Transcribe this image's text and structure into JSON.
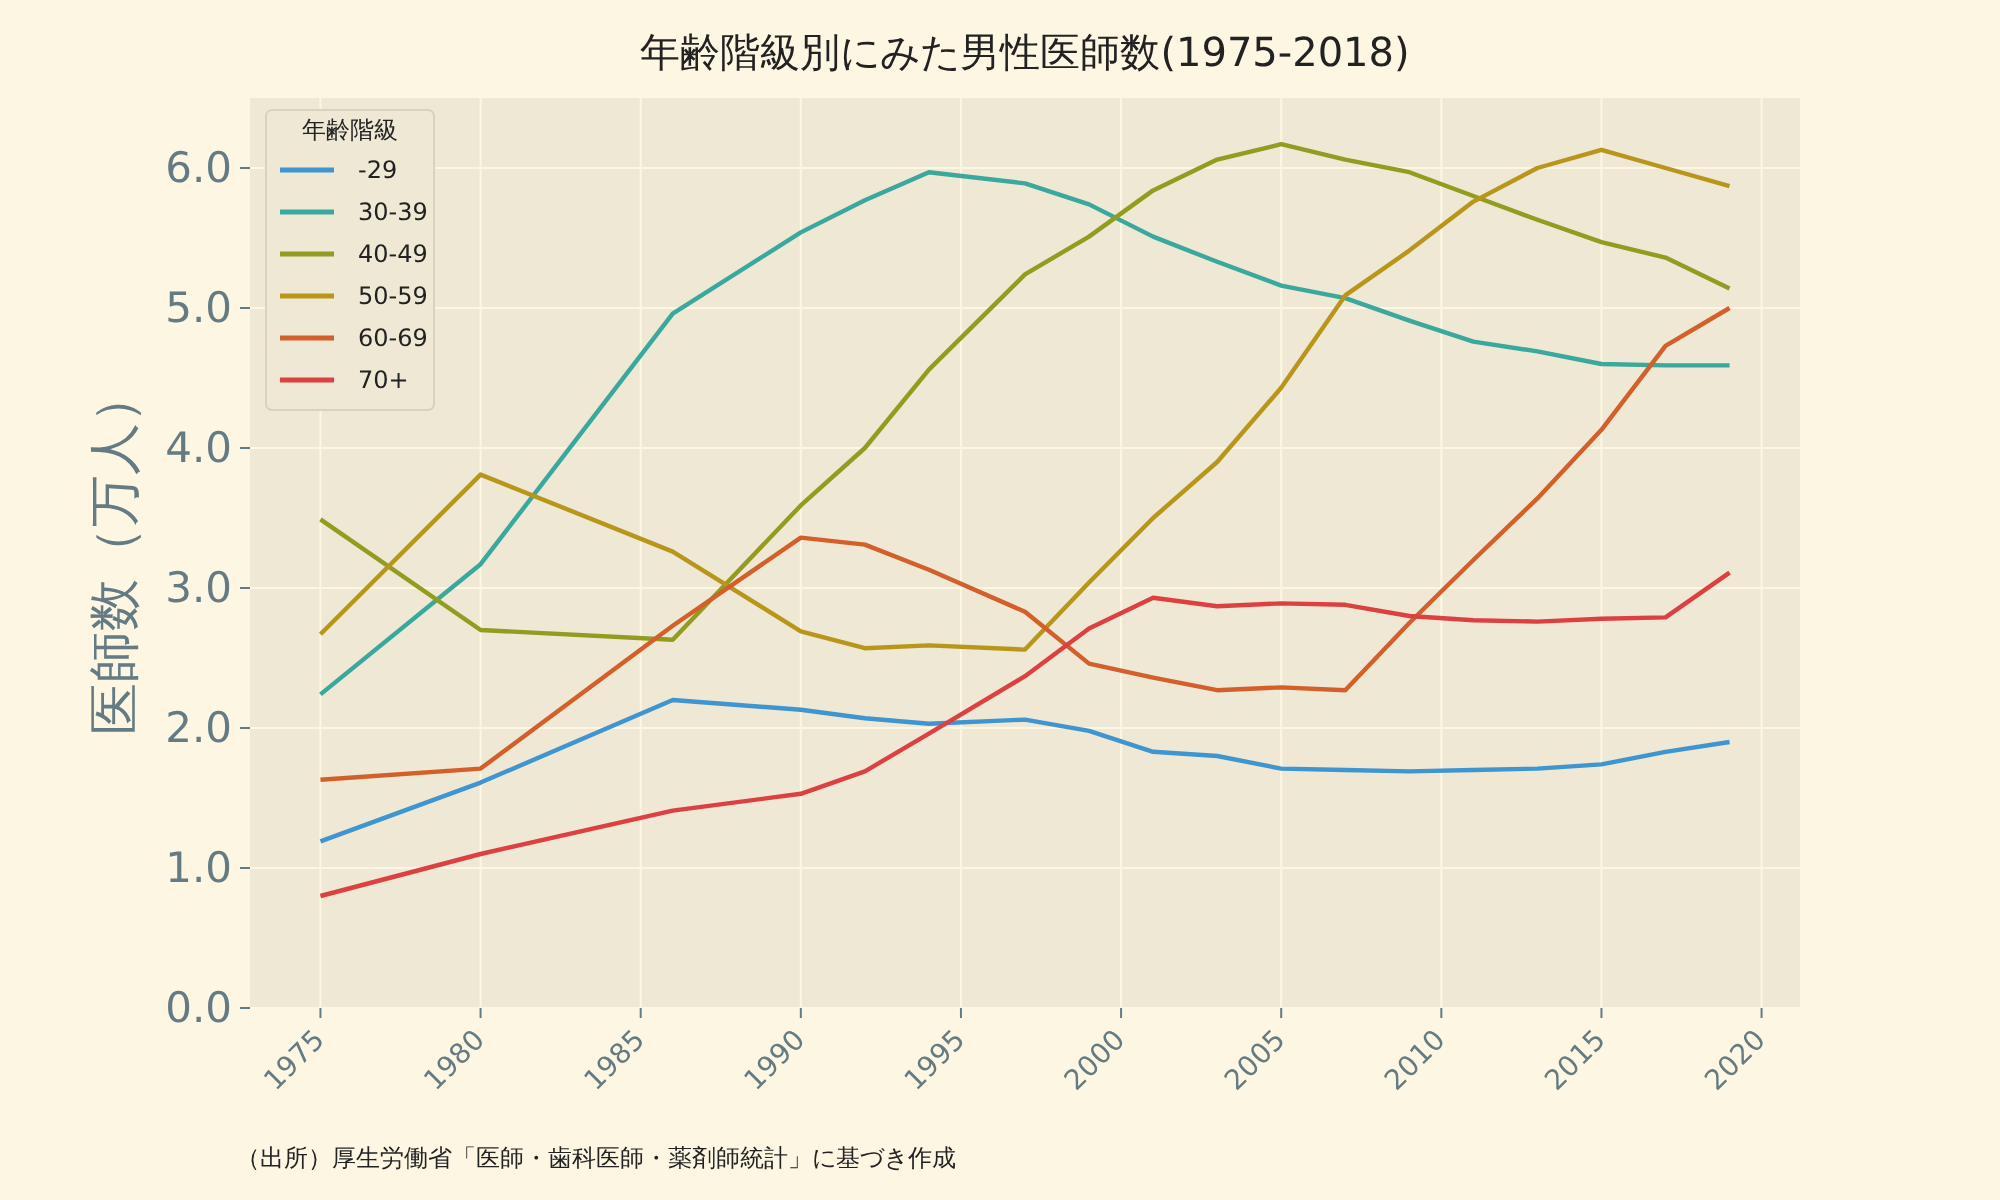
{
  "chart_data": {
    "type": "line",
    "title": "年齢階級別にみた男性医師数(1975-2018)",
    "ylabel": "医師数（万人）",
    "legend_title": "年齢階級",
    "legend": "top left",
    "grid": true,
    "x": [
      1975,
      1980,
      1986,
      1990,
      1992,
      1994,
      1997,
      1999,
      2001,
      2003,
      2005,
      2007,
      2009,
      2011,
      2013,
      2015,
      2017,
      2019
    ],
    "xlim": [
      1972.8,
      2021.2
    ],
    "xticks": [
      1975,
      1980,
      1985,
      1990,
      1995,
      2000,
      2005,
      2010,
      2015,
      2020
    ],
    "ylim": [
      0,
      6.5
    ],
    "yticks": [
      {
        "value": 0,
        "label": "0.0"
      },
      {
        "value": 1,
        "label": "1.0"
      },
      {
        "value": 2,
        "label": "2.0"
      },
      {
        "value": 3,
        "label": "3.0"
      },
      {
        "value": 4,
        "label": "4.0"
      },
      {
        "value": 5,
        "label": "5.0"
      },
      {
        "value": 6,
        "label": "6.0"
      }
    ],
    "series": [
      {
        "name": "-29",
        "color": "#3e95d0",
        "values": [
          1.19,
          1.61,
          2.2,
          2.13,
          2.07,
          2.03,
          2.06,
          1.98,
          1.83,
          1.8,
          1.71,
          1.7,
          1.69,
          1.7,
          1.71,
          1.74,
          1.83,
          1.9
        ]
      },
      {
        "name": "30-39",
        "color": "#3aa89c",
        "values": [
          2.24,
          3.17,
          4.96,
          5.54,
          5.77,
          5.97,
          5.89,
          5.74,
          5.51,
          5.33,
          5.16,
          5.07,
          4.91,
          4.76,
          4.69,
          4.6,
          4.59,
          4.59
        ]
      },
      {
        "name": "40-49",
        "color": "#929c1e",
        "values": [
          3.49,
          2.7,
          2.63,
          3.59,
          4.0,
          4.56,
          5.24,
          5.51,
          5.84,
          6.06,
          6.17,
          6.06,
          5.97,
          5.8,
          5.63,
          5.47,
          5.36,
          5.14
        ]
      },
      {
        "name": "50-59",
        "color": "#b8961a",
        "values": [
          2.67,
          3.81,
          3.26,
          2.69,
          2.57,
          2.59,
          2.56,
          3.04,
          3.5,
          3.9,
          4.43,
          5.09,
          5.41,
          5.76,
          6.0,
          6.13,
          6.0,
          5.87
        ]
      },
      {
        "name": "60-69",
        "color": "#d35f2a",
        "values": [
          1.63,
          1.71,
          2.73,
          3.36,
          3.31,
          3.13,
          2.83,
          2.46,
          2.36,
          2.27,
          2.29,
          2.27,
          2.75,
          3.2,
          3.64,
          4.13,
          4.73,
          5.0
        ]
      },
      {
        "name": "70+",
        "color": "#dc4040",
        "values": [
          0.8,
          1.1,
          1.41,
          1.53,
          1.69,
          1.96,
          2.37,
          2.71,
          2.93,
          2.87,
          2.89,
          2.88,
          2.8,
          2.77,
          2.76,
          2.78,
          2.79,
          3.11
        ]
      }
    ],
    "annotations": [
      "（出所）厚生労働省「医師・歯科医師・薬剤師統計」に基づき作成"
    ]
  }
}
